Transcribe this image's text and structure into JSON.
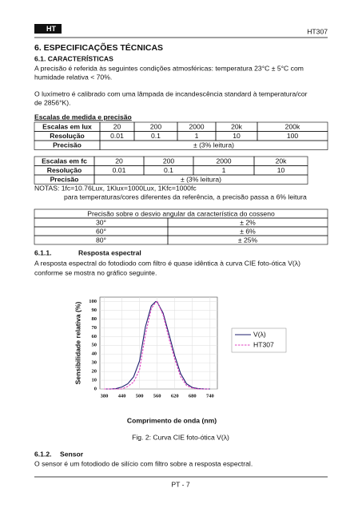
{
  "header": {
    "logo": "HT",
    "model": "HT307"
  },
  "section_title": "6. ESPECIFICAÇÕES TÉCNICAS",
  "subsection_title": "6.1. CARACTERÍSTICAS",
  "paragraphs": [
    [
      "A precisão é referida às seguintes condições atmosféricas: temperatura 23°C ± 5°C com",
      "humidade relativa < 70%."
    ],
    [
      "O luxímetro é calibrado com uma lâmpada de incandescência standard à temperatura/cor",
      "de 2856°K)."
    ]
  ],
  "ranges_title": "Escalas de medida e precisão",
  "table_lux": {
    "rows": [
      [
        "Escalas em lux",
        "20",
        "200",
        "2000",
        "20k",
        "200k"
      ],
      [
        "Resolução",
        "0.01",
        "0.1",
        "1",
        "10",
        "100"
      ],
      [
        "Precisão",
        "± (3% leitura)"
      ]
    ]
  },
  "table_fc": {
    "rows": [
      [
        "Escalas em fc",
        "20",
        "200",
        "2000",
        "20k"
      ],
      [
        "Resolução",
        "0.01",
        "0.1",
        "1",
        "10"
      ],
      [
        "Precisão",
        "± (3% leitura)"
      ]
    ]
  },
  "notes": [
    "NOTAS: 1fc=10.76Lux, 1Klux=1000Lux, 1Kfc=1000fc",
    "para temperaturas/cores diferentes da referência, a precisão passa a 6% leitura"
  ],
  "table_angle": {
    "header": "Precisão sobre o desvio angular da característica do cosseno",
    "rows": [
      [
        "30°",
        "± 2%"
      ],
      [
        "60°",
        "± 6%"
      ],
      [
        "80°",
        "± 25%"
      ]
    ]
  },
  "spectral_title": {
    "number": "6.1.1.",
    "text": "Resposta espectral"
  },
  "spectral_paragraph": [
    "A resposta espectral do fotodiodo com filtro é quase idêntica à curva CIE foto-ótica V(λ)",
    "conforme se mostra no gráfico seguinte."
  ],
  "chart_data": {
    "type": "line",
    "x_label": "Comprimento de onda (nm)",
    "y_label": "Sensibilidade relativa (%)",
    "x": [
      380,
      400,
      420,
      440,
      460,
      480,
      500,
      520,
      540,
      555,
      560,
      580,
      600,
      620,
      640,
      660,
      680,
      700,
      720,
      740
    ],
    "series": [
      {
        "name": "V(λ)",
        "color": "#1f1f6e",
        "style": "solid",
        "values": [
          0,
          0,
          0.4,
          2.3,
          6,
          14,
          32,
          71,
          95,
          100,
          99.5,
          87,
          63,
          38,
          17.5,
          6,
          1.7,
          0.4,
          0.1,
          0
        ]
      },
      {
        "name": "HT307",
        "color": "#e040c0",
        "style": "dashed",
        "values": [
          0,
          0,
          0,
          0,
          3,
          8,
          22,
          62,
          92,
          99,
          100,
          85,
          58,
          34,
          14,
          4,
          1,
          0,
          0,
          0
        ]
      }
    ],
    "xlim": [
      365,
      765
    ],
    "ylim": [
      0,
      105
    ],
    "xticks": [
      380,
      440,
      500,
      560,
      620,
      680,
      740
    ],
    "yticks": [
      0,
      10,
      20,
      30,
      40,
      50,
      60,
      70,
      80,
      90,
      100
    ],
    "grid": true,
    "legend": "right"
  },
  "caption": "Fig. 2: Curva CIE foto-ótica V(λ)",
  "sensor_title": {
    "number": "6.1.2.",
    "text": "Sensor"
  },
  "sensor_paragraph": "O sensor é um fotodiodo de silício com filtro sobre a resposta espectral.",
  "footer": "PT - 7"
}
